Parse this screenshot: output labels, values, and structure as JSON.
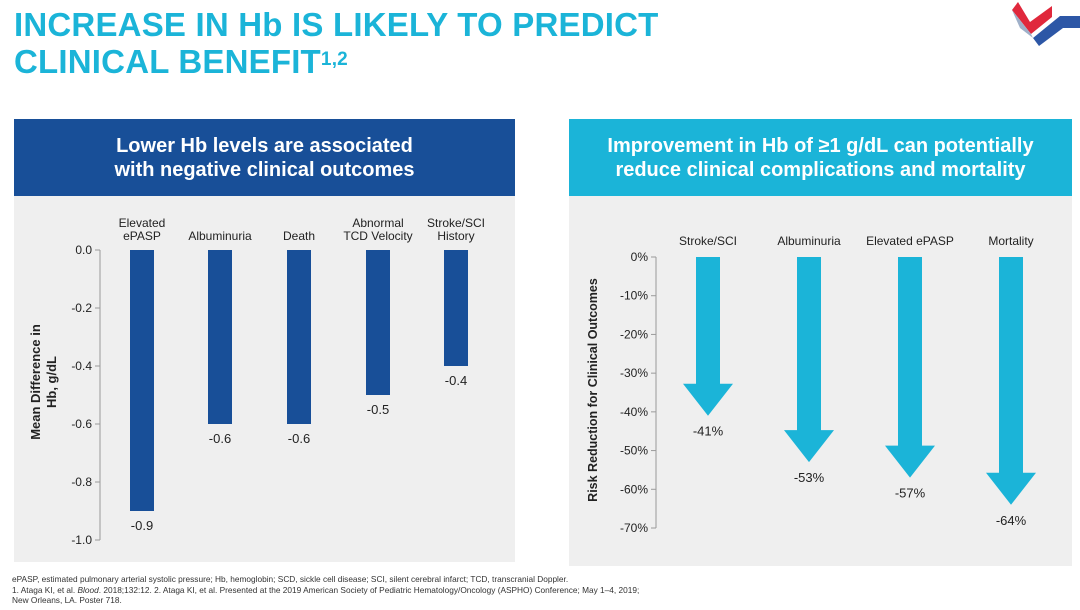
{
  "header": {
    "title_line1": "INCREASE IN Hb IS LIKELY TO PREDICT",
    "title_line2": "CLINICAL BENEFIT",
    "title_sup": "1,2"
  },
  "colors": {
    "title": "#1bb4d8",
    "dark_blue": "#184f98",
    "light_blue": "#1bb4d8",
    "panel_bg": "#efefef",
    "logo_red": "#e0283c",
    "logo_blue": "#2d57a6"
  },
  "left_panel": {
    "heading_line1": "Lower Hb levels are associated",
    "heading_line2": "with negative clinical outcomes"
  },
  "right_panel": {
    "heading_line1": "Improvement in Hb of ≥1 g/dL can potentially",
    "heading_line2": "reduce clinical complications and mortality"
  },
  "chart_data": [
    {
      "type": "bar",
      "title": "Lower Hb levels are associated with negative clinical outcomes",
      "categories": [
        [
          "Elevated",
          "ePASP"
        ],
        [
          "Albuminuria"
        ],
        [
          "Death"
        ],
        [
          "Abnormal",
          "TCD Velocity"
        ],
        [
          "Stroke/SCI",
          "History"
        ]
      ],
      "values": [
        -0.9,
        -0.6,
        -0.6,
        -0.5,
        -0.4
      ],
      "value_labels": [
        "-0.9",
        "-0.6",
        "-0.6",
        "-0.5",
        "-0.4"
      ],
      "ylabel_line1": "Mean Difference in",
      "ylabel_line2": "Hb, g/dL",
      "yticks": [
        0.0,
        -0.2,
        -0.4,
        -0.6,
        -0.8,
        -1.0
      ],
      "ytick_labels": [
        "0.0",
        "-0.2",
        "-0.4",
        "-0.6",
        "-0.8",
        "-1.0"
      ],
      "ylim": [
        -1.0,
        0.0
      ],
      "grid": false
    },
    {
      "type": "bar",
      "title": "Improvement in Hb of ≥1 g/dL can potentially reduce clinical complications and mortality",
      "categories": [
        "Stroke/SCI",
        "Albuminuria",
        "Elevated ePASP",
        "Mortality"
      ],
      "values": [
        -41,
        -53,
        -57,
        -64
      ],
      "value_labels": [
        "-41%",
        "-53%",
        "-57%",
        "-64%"
      ],
      "ylabel": "Risk Reduction for Clinical Outcomes",
      "yticks": [
        0,
        -10,
        -20,
        -30,
        -40,
        -50,
        -60,
        -70
      ],
      "ytick_labels": [
        "0%",
        "-10%",
        "-20%",
        "-30%",
        "-40%",
        "-50%",
        "-60%",
        "-70%"
      ],
      "ylim": [
        -70,
        0
      ],
      "grid": false
    }
  ],
  "footnotes": {
    "line1": "ePASP, estimated pulmonary arterial systolic pressure; Hb, hemoglobin; SCD, sickle cell disease; SCI, silent cerebral infarct; TCD, transcranial Doppler.",
    "line2a": "1. Ataga KI, et al. ",
    "line2b": "Blood",
    "line2c": ". 2018;132:12. 2. Ataga KI, et al. Presented at the 2019 American Society of Pediatric Hematology/Oncology (ASPHO) Conference; May 1–4, 2019;",
    "line3": "New Orleans, LA. Poster 718."
  }
}
